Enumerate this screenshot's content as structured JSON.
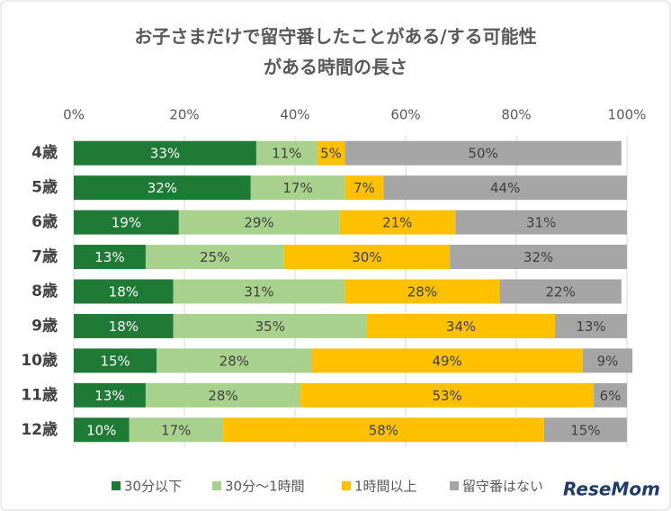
{
  "chart_data": {
    "type": "stacked-barh",
    "title": [
      "お子さまだけで留守番したことがある/する可能性",
      "がある時間の長さ"
    ],
    "categories": [
      "4歳",
      "5歳",
      "6歳",
      "7歳",
      "8歳",
      "9歳",
      "10歳",
      "11歳",
      "12歳"
    ],
    "series": [
      {
        "name": "30分以下",
        "color": "#1f7a36",
        "values": [
          33,
          32,
          19,
          13,
          18,
          18,
          15,
          13,
          10
        ],
        "value_labels": [
          "33%",
          "32%",
          "19%",
          "13%",
          "18%",
          "18%",
          "15%",
          "13%",
          "10%"
        ]
      },
      {
        "name": "30分～1時間",
        "color": "#a9d18e",
        "values": [
          11,
          17,
          29,
          25,
          31,
          35,
          28,
          28,
          17
        ],
        "value_labels": [
          "11%",
          "17%",
          "29%",
          "25%",
          "31%",
          "35%",
          "28%",
          "28%",
          "17%"
        ]
      },
      {
        "name": "1時間以上",
        "color": "#ffc000",
        "values": [
          5,
          7,
          21,
          30,
          28,
          34,
          49,
          53,
          58
        ],
        "value_labels": [
          "5%",
          "7%",
          "21%",
          "30%",
          "28%",
          "34%",
          "49%",
          "53%",
          "58%"
        ]
      },
      {
        "name": "留守番はない",
        "color": "#a5a5a5",
        "values": [
          50,
          44,
          31,
          32,
          22,
          13,
          9,
          6,
          15
        ],
        "value_labels": [
          "50%",
          "44%",
          "31%",
          "32%",
          "22%",
          "13%",
          "9%",
          "6%",
          "15%"
        ]
      }
    ],
    "xlim": [
      0,
      100
    ],
    "xticks": [
      {
        "value": 0,
        "label": "0%"
      },
      {
        "value": 20,
        "label": "20%"
      },
      {
        "value": 40,
        "label": "40%"
      },
      {
        "value": 60,
        "label": "60%"
      },
      {
        "value": 80,
        "label": "80%"
      },
      {
        "value": 100,
        "label": "100%"
      }
    ],
    "grid": true,
    "legend": "bottom",
    "watermark": "ReseMom"
  }
}
